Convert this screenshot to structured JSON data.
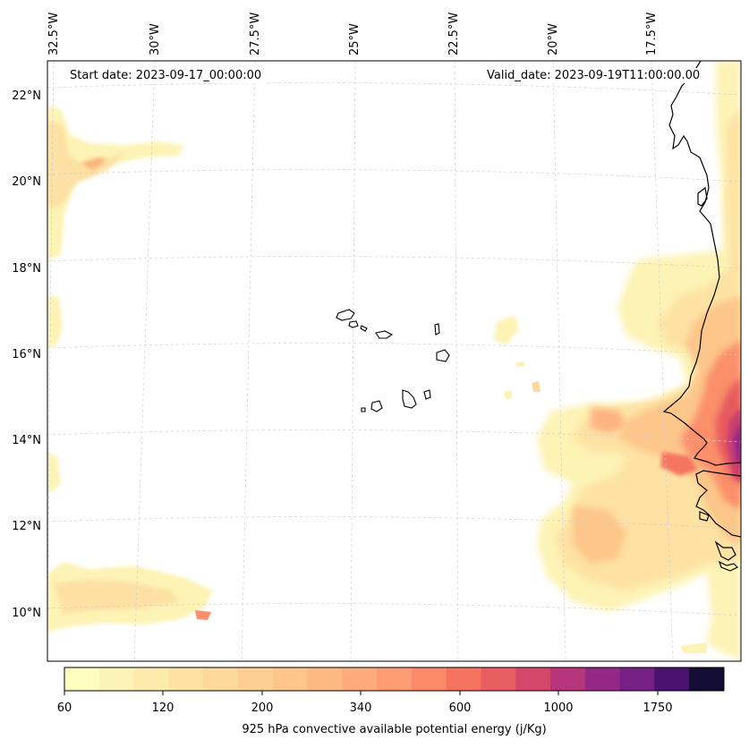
{
  "header": {
    "start_date": "Start date: 2023-09-17_00:00:00",
    "valid_date": "Valid_date: 2023-09-19T11:00:00.00"
  },
  "lon_labels": [
    "32.5°W",
    "30°W",
    "27.5°W",
    "25°W",
    "22.5°W",
    "20°W",
    "17.5°W"
  ],
  "lat_labels": [
    "22°N",
    "20°N",
    "18°N",
    "16°N",
    "14°N",
    "12°N",
    "10°N"
  ],
  "colorbar": {
    "title": "925 hPa convective available potential energy (j/Kg)",
    "tick_labels": [
      "60",
      "120",
      "200",
      "340",
      "600",
      "1000",
      "1750"
    ],
    "colors": [
      "#fcfdbf",
      "#fcf4b6",
      "#fcebad",
      "#fde2a4",
      "#fdd99b",
      "#fdcf92",
      "#fdc58a",
      "#fdb981",
      "#fdab7a",
      "#fd9b72",
      "#fb896a",
      "#f5745f",
      "#e85d5f",
      "#d4466a",
      "#b6357a",
      "#952887",
      "#742084",
      "#4a116f",
      "#140e36"
    ]
  }
}
